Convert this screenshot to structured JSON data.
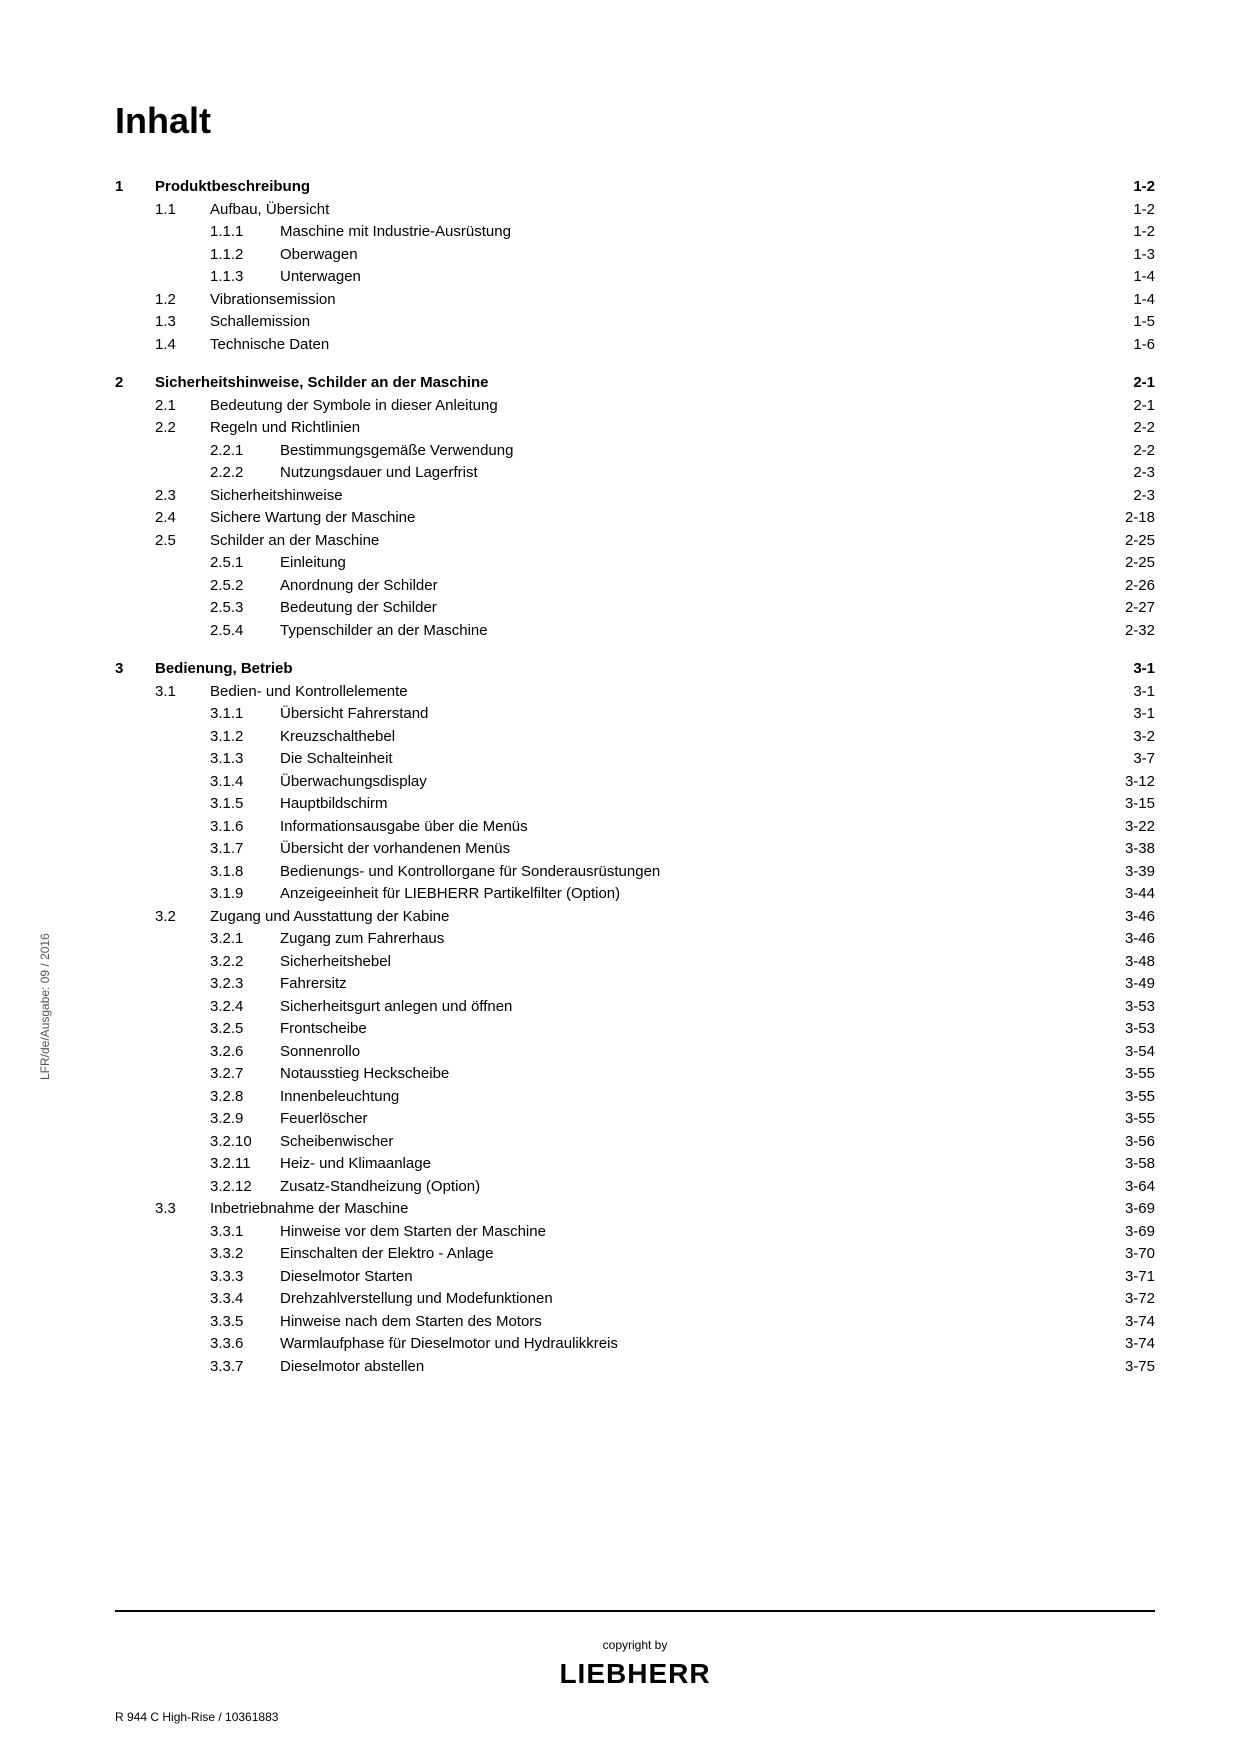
{
  "title": "Inhalt",
  "side_text": "LFR/de/Ausgabe: 09 / 2016",
  "footer_left": "R 944 C High-Rise / 10361883",
  "copyright": "copyright by",
  "brand": "LIEBHERR",
  "entries": [
    {
      "level": "chapter",
      "num": "1",
      "title": "Produktbeschreibung",
      "page": "1-2",
      "first": true
    },
    {
      "level": "section",
      "num": "1.1",
      "title": "Aufbau, Übersicht",
      "page": "1-2"
    },
    {
      "level": "sub",
      "num": "1.1.1",
      "title": "Maschine mit Industrie-Ausrüstung",
      "page": "1-2"
    },
    {
      "level": "sub",
      "num": "1.1.2",
      "title": "Oberwagen",
      "page": "1-3"
    },
    {
      "level": "sub",
      "num": "1.1.3",
      "title": "Unterwagen",
      "page": "1-4"
    },
    {
      "level": "section",
      "num": "1.2",
      "title": "Vibrationsemission",
      "page": "1-4"
    },
    {
      "level": "section",
      "num": "1.3",
      "title": "Schallemission",
      "page": "1-5"
    },
    {
      "level": "section",
      "num": "1.4",
      "title": "Technische Daten",
      "page": "1-6"
    },
    {
      "level": "chapter",
      "num": "2",
      "title": "Sicherheitshinweise, Schilder an der Maschine",
      "page": "2-1"
    },
    {
      "level": "section",
      "num": "2.1",
      "title": "Bedeutung der Symbole in dieser Anleitung",
      "page": "2-1"
    },
    {
      "level": "section",
      "num": "2.2",
      "title": "Regeln und Richtlinien",
      "page": "2-2"
    },
    {
      "level": "sub",
      "num": "2.2.1",
      "title": "Bestimmungsgemäße Verwendung",
      "page": "2-2"
    },
    {
      "level": "sub",
      "num": "2.2.2",
      "title": "Nutzungsdauer und Lagerfrist",
      "page": "2-3"
    },
    {
      "level": "section",
      "num": "2.3",
      "title": "Sicherheitshinweise",
      "page": "2-3"
    },
    {
      "level": "section",
      "num": "2.4",
      "title": "Sichere Wartung der Maschine",
      "page": "2-18"
    },
    {
      "level": "section",
      "num": "2.5",
      "title": "Schilder an der Maschine",
      "page": "2-25"
    },
    {
      "level": "sub",
      "num": "2.5.1",
      "title": "Einleitung",
      "page": "2-25"
    },
    {
      "level": "sub",
      "num": "2.5.2",
      "title": "Anordnung der Schilder",
      "page": "2-26"
    },
    {
      "level": "sub",
      "num": "2.5.3",
      "title": "Bedeutung der Schilder",
      "page": "2-27"
    },
    {
      "level": "sub",
      "num": "2.5.4",
      "title": "Typenschilder an der Maschine",
      "page": "2-32"
    },
    {
      "level": "chapter",
      "num": "3",
      "title": "Bedienung, Betrieb",
      "page": "3-1"
    },
    {
      "level": "section",
      "num": "3.1",
      "title": "Bedien- und Kontrollelemente",
      "page": "3-1"
    },
    {
      "level": "sub",
      "num": "3.1.1",
      "title": "Übersicht Fahrerstand",
      "page": "3-1"
    },
    {
      "level": "sub",
      "num": "3.1.2",
      "title": "Kreuzschalthebel",
      "page": "3-2"
    },
    {
      "level": "sub",
      "num": "3.1.3",
      "title": "Die Schalteinheit",
      "page": "3-7"
    },
    {
      "level": "sub",
      "num": "3.1.4",
      "title": "Überwachungsdisplay",
      "page": "3-12"
    },
    {
      "level": "sub",
      "num": "3.1.5",
      "title": "Hauptbildschirm",
      "page": "3-15"
    },
    {
      "level": "sub",
      "num": "3.1.6",
      "title": "Informationsausgabe über die Menüs",
      "page": "3-22"
    },
    {
      "level": "sub",
      "num": "3.1.7",
      "title": "Übersicht der vorhandenen Menüs",
      "page": "3-38"
    },
    {
      "level": "sub",
      "num": "3.1.8",
      "title": "Bedienungs- und Kontrollorgane für Sonderausrüstungen",
      "page": "3-39"
    },
    {
      "level": "sub",
      "num": "3.1.9",
      "title": "Anzeigeeinheit für LIEBHERR Partikelfilter (Option)",
      "page": "3-44"
    },
    {
      "level": "section",
      "num": "3.2",
      "title": "Zugang und Ausstattung der Kabine",
      "page": "3-46"
    },
    {
      "level": "sub",
      "num": "3.2.1",
      "title": "Zugang zum Fahrerhaus",
      "page": "3-46"
    },
    {
      "level": "sub",
      "num": "3.2.2",
      "title": "Sicherheitshebel",
      "page": "3-48"
    },
    {
      "level": "sub",
      "num": "3.2.3",
      "title": "Fahrersitz",
      "page": "3-49"
    },
    {
      "level": "sub",
      "num": "3.2.4",
      "title": "Sicherheitsgurt anlegen und öffnen",
      "page": "3-53"
    },
    {
      "level": "sub",
      "num": "3.2.5",
      "title": "Frontscheibe",
      "page": "3-53"
    },
    {
      "level": "sub",
      "num": "3.2.6",
      "title": "Sonnenrollo",
      "page": "3-54"
    },
    {
      "level": "sub",
      "num": "3.2.7",
      "title": "Notausstieg Heckscheibe",
      "page": "3-55"
    },
    {
      "level": "sub",
      "num": "3.2.8",
      "title": "Innenbeleuchtung",
      "page": "3-55"
    },
    {
      "level": "sub",
      "num": "3.2.9",
      "title": "Feuerlöscher",
      "page": "3-55"
    },
    {
      "level": "sub",
      "num": "3.2.10",
      "title": "Scheibenwischer",
      "page": "3-56"
    },
    {
      "level": "sub",
      "num": "3.2.11",
      "title": "Heiz- und Klimaanlage",
      "page": "3-58"
    },
    {
      "level": "sub",
      "num": "3.2.12",
      "title": "Zusatz-Standheizung (Option)",
      "page": "3-64"
    },
    {
      "level": "section",
      "num": "3.3",
      "title": "Inbetriebnahme der Maschine",
      "page": "3-69"
    },
    {
      "level": "sub",
      "num": "3.3.1",
      "title": "Hinweise vor dem Starten der Maschine",
      "page": "3-69"
    },
    {
      "level": "sub",
      "num": "3.3.2",
      "title": "Einschalten der Elektro - Anlage",
      "page": "3-70"
    },
    {
      "level": "sub",
      "num": "3.3.3",
      "title": "Dieselmotor Starten",
      "page": "3-71"
    },
    {
      "level": "sub",
      "num": "3.3.4",
      "title": "Drehzahlverstellung und Modefunktionen",
      "page": "3-72"
    },
    {
      "level": "sub",
      "num": "3.3.5",
      "title": "Hinweise nach dem Starten des Motors",
      "page": "3-74"
    },
    {
      "level": "sub",
      "num": "3.3.6",
      "title": "Warmlaufphase für Dieselmotor und Hydraulikkreis",
      "page": "3-74"
    },
    {
      "level": "sub",
      "num": "3.3.7",
      "title": "Dieselmotor abstellen",
      "page": "3-75"
    }
  ]
}
